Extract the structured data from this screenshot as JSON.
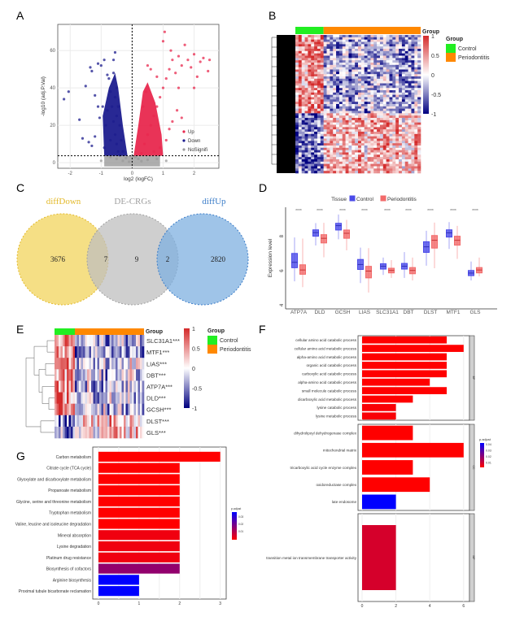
{
  "panels": [
    "A",
    "B",
    "C",
    "D",
    "E",
    "F",
    "G"
  ],
  "chart_data": [
    {
      "type": "scatter",
      "xlabel": "log2 (logFC)",
      "ylabel": "-log10 (adj.P.Val)",
      "xlim": [
        -2.4,
        2.8
      ],
      "ylim": [
        -3,
        74
      ],
      "xticks": [
        -2,
        -1,
        0,
        1,
        2
      ],
      "yticks": [
        0,
        20,
        40,
        60
      ],
      "grid": true,
      "threshold_x": 0,
      "threshold_y": 3.7,
      "legend": {
        "position": "bottom-right",
        "entries": [
          "Up",
          "Down",
          "NoSignifi"
        ]
      },
      "colors": {
        "Up": "#e8284e",
        "Down": "#1c1c8e",
        "NoSignifi": "#9a9a9a"
      },
      "series": [
        {
          "name": "Up",
          "points": [
            [
              0.3,
              5
            ],
            [
              0.4,
              10
            ],
            [
              0.5,
              15
            ],
            [
              0.6,
              20
            ],
            [
              0.7,
              25
            ],
            [
              0.8,
              30
            ],
            [
              0.9,
              35
            ],
            [
              1.0,
              40
            ],
            [
              1.1,
              45
            ],
            [
              1.2,
              50
            ],
            [
              1.3,
              55
            ],
            [
              1.5,
              57
            ],
            [
              1.7,
              63
            ],
            [
              1.0,
              65
            ],
            [
              1.05,
              70
            ],
            [
              0.5,
              52
            ],
            [
              0.6,
              50
            ],
            [
              0.8,
              46
            ],
            [
              1.4,
              48
            ],
            [
              1.6,
              52
            ],
            [
              1.8,
              55
            ],
            [
              2.0,
              58
            ],
            [
              2.2,
              54
            ],
            [
              2.3,
              56
            ],
            [
              2.45,
              49
            ],
            [
              2.5,
              55
            ],
            [
              2.1,
              46
            ],
            [
              2.0,
              40
            ],
            [
              1.5,
              40
            ],
            [
              1.45,
              28
            ],
            [
              1.3,
              22
            ],
            [
              1.2,
              18
            ],
            [
              1.1,
              12
            ],
            [
              0.9,
              8
            ],
            [
              0.7,
              6
            ],
            [
              1.6,
              24
            ],
            [
              0.35,
              30
            ],
            [
              0.45,
              38
            ],
            [
              1.9,
              51
            ],
            [
              1.25,
              60
            ]
          ]
        },
        {
          "name": "Down",
          "points": [
            [
              -2.05,
              38
            ],
            [
              -2.2,
              34
            ],
            [
              -1.7,
              23
            ],
            [
              -1.6,
              13
            ],
            [
              -1.5,
              41
            ],
            [
              -1.35,
              51
            ],
            [
              -1.3,
              49
            ],
            [
              -1.4,
              11
            ],
            [
              -1.2,
              14
            ],
            [
              -1.3,
              9
            ],
            [
              -1.1,
              53
            ],
            [
              -1.0,
              52
            ],
            [
              -0.9,
              55
            ],
            [
              -0.55,
              59
            ],
            [
              -0.6,
              55
            ],
            [
              -0.8,
              47
            ],
            [
              -1.2,
              36
            ],
            [
              -1.05,
              24
            ],
            [
              -0.95,
              30
            ],
            [
              -0.75,
              45
            ],
            [
              -0.7,
              38
            ],
            [
              -0.65,
              30
            ],
            [
              -0.6,
              22
            ],
            [
              -0.55,
              15
            ],
            [
              -0.5,
              10
            ],
            [
              -0.45,
              6
            ],
            [
              -0.4,
              4
            ],
            [
              -0.85,
              20
            ],
            [
              -0.7,
              12
            ],
            [
              -0.9,
              8
            ],
            [
              -0.6,
              48
            ],
            [
              -0.5,
              40
            ],
            [
              -0.45,
              30
            ],
            [
              -0.4,
              20
            ],
            [
              -0.35,
              12
            ],
            [
              -0.3,
              6
            ],
            [
              -1.1,
              30
            ],
            [
              -0.8,
              28
            ],
            [
              -0.55,
              35
            ],
            [
              -0.5,
              25
            ]
          ]
        },
        {
          "name": "NoSignifi",
          "points": [
            [
              -0.3,
              1
            ],
            [
              0.2,
              2
            ],
            [
              -0.1,
              0.5
            ],
            [
              0.1,
              3
            ],
            [
              -0.5,
              2
            ],
            [
              0.5,
              1.5
            ],
            [
              -1.0,
              1
            ],
            [
              0.8,
              2
            ],
            [
              -0.2,
              2.5
            ],
            [
              0.3,
              0.8
            ],
            [
              -0.7,
              3
            ],
            [
              1.1,
              1
            ]
          ]
        }
      ]
    },
    {
      "type": "heatmap",
      "annotation_title": "Group",
      "legend_title": "Group",
      "groups": [
        {
          "name": "Control",
          "color": "#22ee22"
        },
        {
          "name": "Periodontitis",
          "color": "#ff8800"
        }
      ],
      "colorbar_ticks": [
        1,
        0.5,
        0,
        -0.5,
        -1
      ],
      "colorscale": [
        "#000080",
        "#ffffff",
        "#d42a2a"
      ],
      "row_clusters": [
        {
          "Control": 0.5,
          "Periodontitis": -0.35
        },
        {
          "Control": -0.55,
          "Periodontitis": 0.3
        }
      ]
    },
    {
      "type": "venn",
      "sets": [
        {
          "name": "diffDown",
          "color": "#f2d45c",
          "label_color": "#e3b92a"
        },
        {
          "name": "DE-CRGs",
          "color": "#bfbfbf",
          "label_color": "#a0a0a0"
        },
        {
          "name": "diffUp",
          "color": "#7fb0e0",
          "label_color": "#3a7cc8"
        }
      ],
      "regions": {
        "diffDown_only": 3676,
        "diffDown_and_DE-CRGs": 7,
        "DE-CRGs_only": 9,
        "DE-CRGs_and_diffUp": 2,
        "diffUp_only": 2820
      }
    },
    {
      "type": "box",
      "legend_title": "Tissue",
      "series": [
        {
          "name": "Control",
          "color": "#4a4ae8"
        },
        {
          "name": "Periodontitis",
          "color": "#f26a6a"
        }
      ],
      "ylabel": "Expression level",
      "yticks": [
        4,
        6,
        8
      ],
      "ylim": [
        3.8,
        9.7
      ],
      "significance": "****",
      "categories": [
        "ATP7A",
        "DLD",
        "GCSH",
        "LIAS",
        "SLC31A1",
        "DBT",
        "DLST",
        "MTF1",
        "GLS"
      ],
      "boxes": {
        "Control": [
          [
            5.4,
            6.19,
            6.5,
            7.02,
            7.95
          ],
          [
            7.48,
            8.02,
            8.23,
            8.39,
            8.78
          ],
          [
            7.84,
            8.38,
            8.63,
            8.77,
            9.28
          ],
          [
            5.3,
            6.09,
            6.38,
            6.67,
            7.36
          ],
          [
            5.77,
            6.11,
            6.27,
            6.42,
            6.78
          ],
          [
            5.6,
            6.11,
            6.28,
            6.44,
            7.1
          ],
          [
            6.31,
            7.08,
            7.4,
            7.7,
            8.34
          ],
          [
            7.28,
            7.97,
            8.22,
            8.39,
            8.84
          ],
          [
            5.45,
            5.73,
            5.88,
            6.03,
            6.55
          ]
        ],
        "Periodontitis": [
          [
            5.06,
            5.81,
            6.06,
            6.36,
            7.88
          ],
          [
            6.8,
            7.63,
            7.9,
            8.11,
            8.8
          ],
          [
            7.2,
            7.9,
            8.19,
            8.38,
            8.97
          ],
          [
            4.75,
            5.6,
            6.0,
            6.27,
            7.33
          ],
          [
            5.6,
            5.89,
            6.03,
            6.16,
            6.63
          ],
          [
            5.45,
            5.84,
            6.03,
            6.2,
            6.78
          ],
          [
            6.16,
            7.33,
            7.78,
            8.06,
            8.81
          ],
          [
            6.7,
            7.5,
            7.78,
            8.02,
            8.62
          ],
          [
            5.69,
            5.89,
            6.06,
            6.2,
            6.78
          ]
        ]
      }
    },
    {
      "type": "heatmap",
      "annotation_title": "Group",
      "legend_title": "Group",
      "groups": [
        {
          "name": "Control",
          "color": "#22ee22"
        },
        {
          "name": "Periodontitis",
          "color": "#ff8800"
        }
      ],
      "colorbar_ticks": [
        1,
        0.5,
        0,
        -0.5,
        -1
      ],
      "rows": [
        "SLC31A1***",
        "MTF1***",
        "LIAS***",
        "DBT***",
        "ATP7A***",
        "DLD***",
        "GCSH***",
        "DLST***",
        "GLS***"
      ],
      "row_means": [
        {
          "Control": 0.55,
          "Periodontitis": -0.2
        },
        {
          "Control": 0.55,
          "Periodontitis": -0.25
        },
        {
          "Control": 0.5,
          "Periodontitis": -0.15
        },
        {
          "Control": 0.55,
          "Periodontitis": -0.2
        },
        {
          "Control": 0.5,
          "Periodontitis": -0.2
        },
        {
          "Control": 0.55,
          "Periodontitis": -0.15
        },
        {
          "Control": 0.6,
          "Periodontitis": -0.2
        },
        {
          "Control": -0.5,
          "Periodontitis": 0.3
        },
        {
          "Control": -0.5,
          "Periodontitis": 0.25
        }
      ]
    },
    {
      "type": "bar",
      "orientation": "horizontal",
      "xticks": [
        0,
        2,
        4,
        6
      ],
      "colorbar_title": "p.adjust",
      "colorbar_ticks": [
        0.04,
        0.03,
        0.02,
        0.01
      ],
      "p_range": [
        0.001,
        0.043
      ],
      "facets": [
        {
          "name": "BP",
          "categories": [
            "cellular amino acid catabolic process",
            "cellular amino acid metabolic process",
            "alpha-amino acid metabolic process",
            "organic acid catabolic process",
            "carboxylic acid catabolic process",
            "alpha-amino acid catabolic process",
            "small molecule catabolic process",
            "dicarboxylic acid metabolic process",
            "lysine catabolic process",
            "lysine metabolic process"
          ],
          "values": [
            5,
            6,
            5,
            5,
            5,
            4,
            5,
            3,
            2,
            2
          ],
          "p_adjust": [
            0.001,
            0.001,
            0.001,
            0.001,
            0.001,
            0.001,
            0.001,
            0.001,
            0.002,
            0.002
          ]
        },
        {
          "name": "CC",
          "categories": [
            "dihydrolipoyl dehydrogenase complex",
            "mitochondrial matrix",
            "tricarboxylic acid cycle enzyme complex",
            "oxidoreductase complex",
            "late endosome"
          ],
          "values": [
            3,
            6,
            3,
            4,
            2
          ],
          "p_adjust": [
            0.001,
            0.001,
            0.001,
            0.001,
            0.043
          ]
        },
        {
          "name": "MF",
          "categories": [
            "transition metal ion transmembrane transporter activity"
          ],
          "values": [
            2
          ],
          "p_adjust": [
            0.008
          ]
        }
      ]
    },
    {
      "type": "bar",
      "orientation": "horizontal",
      "xticks": [
        0,
        1,
        2,
        3
      ],
      "colorbar_title": "p.adjust",
      "colorbar_ticks": [
        0.03,
        0.02,
        0.01
      ],
      "p_range": [
        0.001,
        0.036
      ],
      "categories": [
        "Carbon metabolism",
        "Citrate cycle (TCA cycle)",
        "Glyoxylate and dicarboxylate metabolism",
        "Propanoate metabolism",
        "Glycine, serine and threonine metabolism",
        "Tryptophan metabolism",
        "Valine, leucine and isoleucine degradation",
        "Mineral absorption",
        "Lysine degradation",
        "Platinum drug resistance",
        "Biosynthesis of cofactors",
        "Arginine biosynthesis",
        "Proximal tubule bicarbonate reclamation"
      ],
      "values": [
        3,
        2,
        2,
        2,
        2,
        2,
        2,
        2,
        2,
        2,
        2,
        1,
        1
      ],
      "p_adjust": [
        0.001,
        0.001,
        0.001,
        0.001,
        0.001,
        0.001,
        0.001,
        0.003,
        0.003,
        0.003,
        0.016,
        0.036,
        0.036
      ]
    }
  ]
}
